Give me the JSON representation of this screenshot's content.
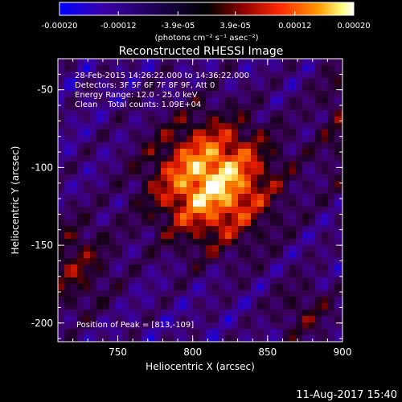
{
  "colorbar": {
    "tick_labels": [
      "-0.00020",
      "-0.00012",
      "-3.9e-05",
      "3.9e-05",
      "0.00012",
      "0.00020"
    ],
    "tick_values": [
      -0.0002,
      -0.00012,
      -3.9e-05,
      3.9e-05,
      0.00012,
      0.0002
    ],
    "range": [
      -0.0002,
      0.0002
    ],
    "unit_label": "(photons cm⁻² s⁻¹ asec⁻²)",
    "colormap": [
      "#0000ff",
      "#3a00a8",
      "#000000",
      "#8a0000",
      "#ff2a00",
      "#ff9a00",
      "#ffff80",
      "#ffffff"
    ]
  },
  "chart_data": {
    "type": "heatmap",
    "title": "Reconstructed RHESSI Image",
    "xlabel": "Heliocentric X (arcsec)",
    "ylabel": "Heliocentric Y (arcsec)",
    "xlim": [
      710,
      900
    ],
    "ylim": [
      -212,
      -30
    ],
    "xticks": [
      750,
      800,
      850,
      900
    ],
    "yticks": [
      -50,
      -100,
      -150,
      -200
    ],
    "annotations": [
      "28-Feb-2015 14:26:22.000 to 14:36:22.000",
      "Detectors: 3F 5F 6F 7F 8F 9F, Att 0",
      "Energy Range: 12.0 - 25.0 keV",
      "Clean    Total counts: 1.09E+04"
    ],
    "peak_label": "Position of Peak = [813,-109]",
    "peak": {
      "x": 813,
      "y": -109
    }
  },
  "footer": {
    "timestamp": "11-Aug-2017 15:40"
  }
}
